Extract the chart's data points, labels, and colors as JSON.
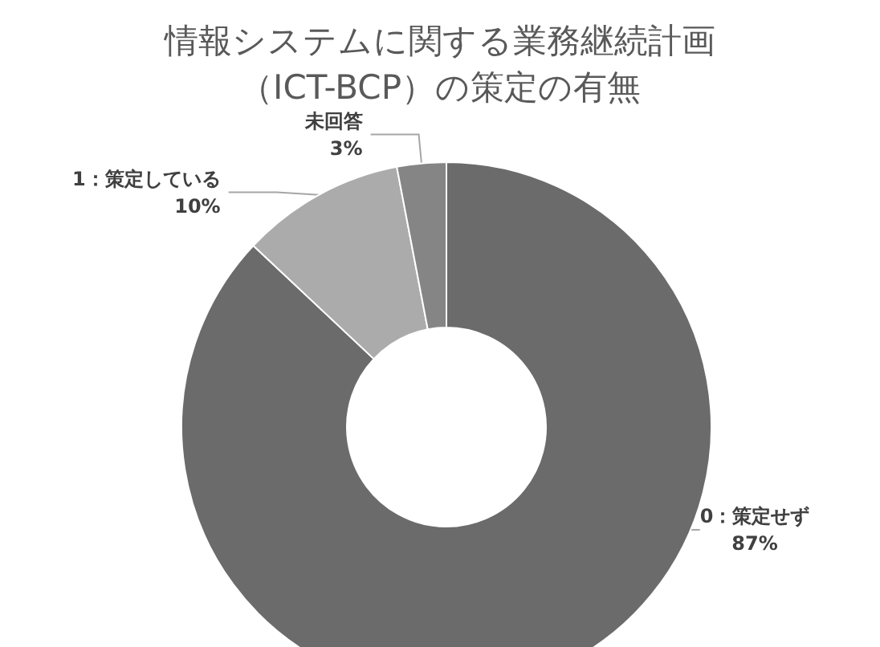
{
  "chart_data": {
    "type": "donut",
    "title": "情報システムに関する業務継続計画（ICT-BCP）の策定の有無",
    "categories": [
      "0：策定せず",
      "1：策定している",
      "未回答"
    ],
    "values": [
      87,
      10,
      3
    ],
    "value_labels": [
      "87%",
      "10%",
      "3%"
    ],
    "colors": [
      "#6b6b6b",
      "#ababab",
      "#858585"
    ],
    "legend": false
  }
}
